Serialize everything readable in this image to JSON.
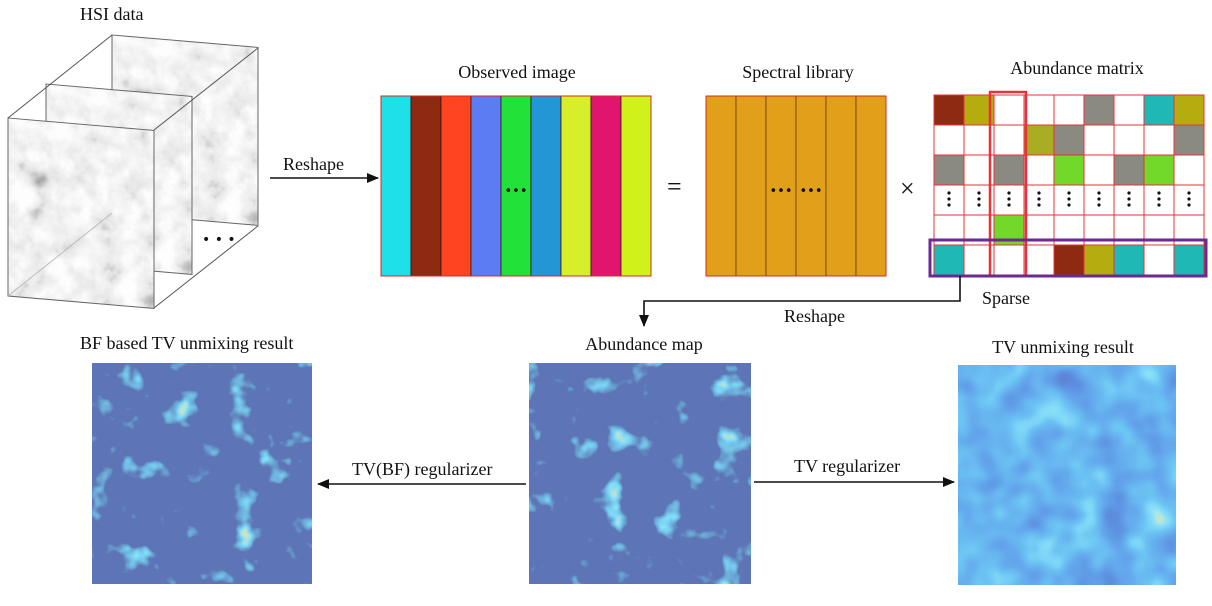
{
  "labels": {
    "hsi_data": "HSI data",
    "reshape_top": "Reshape",
    "observed_image": "Observed image",
    "spectral_library": "Spectral library",
    "abundance_matrix": "Abundance matrix",
    "equals": "=",
    "times": "×",
    "sparse": "Sparse",
    "reshape_bottom": "Reshape",
    "bf_result": "BF based TV unmixing result",
    "abundance_map": "Abundance map",
    "tv_result": "TV unmixing result",
    "tvbf_regularizer": "TV(BF)  regularizer",
    "tv_regularizer": "TV regularizer",
    "ellipsis": "•••"
  },
  "colors": {
    "observed_bands": [
      "#1ee0e8",
      "#8f2a12",
      "#ff4420",
      "#5b7cf2",
      "#22e23a",
      "#2396d6",
      "#d6ef2a",
      "#e2156e",
      "#d0f21a"
    ],
    "library_fill": "#e2a01a",
    "abundance_rows": [
      [
        "#8f2a12",
        "#b5ac10",
        "#ffffff",
        "#ffffff",
        "#ffffff",
        "#8a8a80",
        "#ffffff",
        "#1fb8b5",
        "#b5ac10"
      ],
      [
        "#ffffff",
        "#ffffff",
        "#ffffff",
        "#a8ad22",
        "#8a8a80",
        "#ffffff",
        "#ffffff",
        "#ffffff",
        "#8a8a80"
      ],
      [
        "#8a8a80",
        "#ffffff",
        "#8a8a80",
        "#ffffff",
        "#72d82a",
        "#ffffff",
        "#8a8a80",
        "#72d82a",
        "#ffffff"
      ],
      [
        "#ffffff",
        "#ffffff",
        "#ffffff",
        "#ffffff",
        "#ffffff",
        "#ffffff",
        "#ffffff",
        "#ffffff",
        "#ffffff"
      ],
      [
        "#ffffff",
        "#ffffff",
        "#72d82a",
        "#ffffff",
        "#ffffff",
        "#ffffff",
        "#ffffff",
        "#ffffff",
        "#ffffff"
      ],
      [
        "#1fb8b5",
        "#ffffff",
        "#ffffff",
        "#ffffff",
        "#8f2a12",
        "#b5ac10",
        "#1fb8b5",
        "#ffffff",
        "#1fb8b5"
      ]
    ],
    "grid_line": "#e8323a",
    "sparse_column_box": "#e8323a",
    "sparse_row_box": "#6a2a8f",
    "map_background": "#1c2f78"
  }
}
